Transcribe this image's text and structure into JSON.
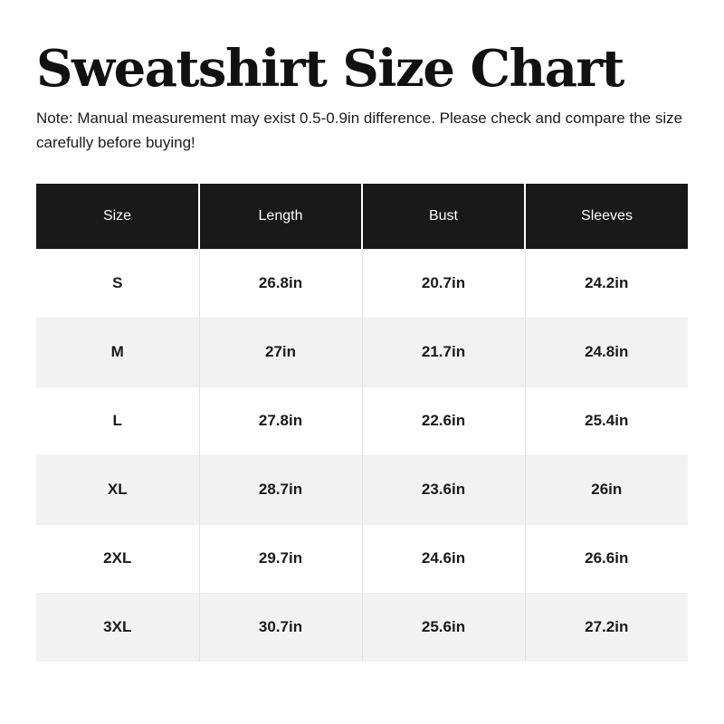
{
  "page": {
    "title": "Sweatshirt Size Chart",
    "note": "Note: Manual measurement may exist 0.5-0.9in difference. Please check and compare the size carefully before buying!"
  },
  "colors": {
    "header_bg": "#191919",
    "header_text": "#ffffff",
    "row_alt_bg": "#f2f2f2",
    "body_text": "#1a1a1a",
    "grid_line": "#e2e2e2"
  },
  "table": {
    "headers": [
      "Size",
      "Length",
      "Bust",
      "Sleeves"
    ],
    "rows": [
      {
        "cells": [
          "S",
          "26.8in",
          "20.7in",
          "24.2in"
        ]
      },
      {
        "cells": [
          "M",
          "27in",
          "21.7in",
          "24.8in"
        ]
      },
      {
        "cells": [
          "L",
          "27.8in",
          "22.6in",
          "25.4in"
        ]
      },
      {
        "cells": [
          "XL",
          "28.7in",
          "23.6in",
          "26in"
        ]
      },
      {
        "cells": [
          "2XL",
          "29.7in",
          "24.6in",
          "26.6in"
        ]
      },
      {
        "cells": [
          "3XL",
          "30.7in",
          "25.6in",
          "27.2in"
        ]
      }
    ]
  },
  "chart_data": {
    "type": "table",
    "title": "Sweatshirt Size Chart",
    "columns": [
      "Size",
      "Length",
      "Bust",
      "Sleeves"
    ],
    "rows": [
      [
        "S",
        "26.8in",
        "20.7in",
        "24.2in"
      ],
      [
        "M",
        "27in",
        "21.7in",
        "24.8in"
      ],
      [
        "L",
        "27.8in",
        "22.6in",
        "25.4in"
      ],
      [
        "XL",
        "28.7in",
        "23.6in",
        "26in"
      ],
      [
        "2XL",
        "29.7in",
        "24.6in",
        "26.6in"
      ],
      [
        "3XL",
        "30.7in",
        "25.6in",
        "27.2in"
      ]
    ]
  }
}
